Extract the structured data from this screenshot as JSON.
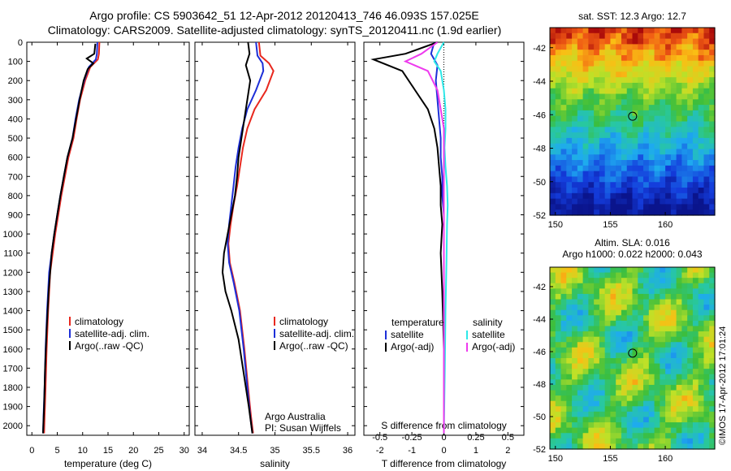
{
  "header": {
    "line1": "Argo profile: CS 5903642_51 12-Apr-2012 20120413_746 46.093S 157.025E",
    "line2": "Climatology: CARS2009. Satellite-adjusted climatology: synTS_20120411.nc (1.9d earlier)"
  },
  "colors": {
    "climatology": "#e8281e",
    "satellite": "#1d2fd8",
    "argo": "#000000",
    "sal_sat": "#2ee8e8",
    "sal_argo": "#ee3bee"
  },
  "chart_data": [
    {
      "type": "line",
      "id": "temperature",
      "xlabel": "temperature (deg C)",
      "xlim": [
        -1,
        31
      ],
      "ylim": [
        2050,
        0
      ],
      "xticks": [
        0,
        5,
        10,
        15,
        20,
        25,
        30
      ],
      "yticks": [
        0,
        100,
        200,
        300,
        400,
        500,
        600,
        700,
        800,
        900,
        1000,
        1100,
        1200,
        1300,
        1400,
        1500,
        1600,
        1700,
        1800,
        1900,
        2000
      ],
      "legend": [
        "climatology",
        "satellite-adj. clim.",
        "Argo(..raw -QC)"
      ],
      "series": [
        {
          "name": "climatology",
          "color": "#e8281e",
          "x": [
            13.3,
            13.2,
            13.0,
            11.5,
            10.5,
            9.5,
            8.8,
            8.2,
            7.2,
            6.5,
            5.8,
            5.2,
            4.6,
            4.1,
            3.6,
            3.2,
            2.9,
            2.7,
            2.5,
            2.4
          ],
          "y": [
            0,
            60,
            90,
            130,
            200,
            300,
            400,
            500,
            600,
            700,
            800,
            900,
            1000,
            1100,
            1200,
            1400,
            1600,
            1800,
            1950,
            2040
          ]
        },
        {
          "name": "satellite-adj. clim.",
          "color": "#1d2fd8",
          "x": [
            12.9,
            12.8,
            12.6,
            11.2,
            10.3,
            9.3,
            8.6,
            8.0,
            7.0,
            6.3,
            5.6,
            5.0,
            4.4,
            3.9,
            3.4,
            3.0,
            2.7,
            2.5,
            2.3,
            2.2
          ],
          "y": [
            0,
            60,
            90,
            130,
            200,
            300,
            400,
            500,
            600,
            700,
            800,
            900,
            1000,
            1100,
            1200,
            1400,
            1600,
            1800,
            1950,
            2040
          ]
        },
        {
          "name": "Argo(..raw -QC)",
          "color": "#000000",
          "x": [
            12.5,
            12.3,
            10.8,
            12.1,
            11.0,
            10.2,
            9.4,
            8.7,
            8.0,
            7.0,
            6.3,
            5.6,
            5.0,
            4.4,
            3.9,
            3.3,
            2.9,
            2.6,
            2.4,
            2.2
          ],
          "y": [
            8,
            60,
            85,
            110,
            140,
            200,
            300,
            400,
            500,
            600,
            700,
            800,
            900,
            1000,
            1100,
            1300,
            1500,
            1700,
            1900,
            2040
          ]
        }
      ]
    },
    {
      "type": "line",
      "id": "salinity",
      "xlabel": "salinity",
      "xlim": [
        33.9,
        36.1
      ],
      "ylim": [
        2050,
        0
      ],
      "xticks": [
        34,
        34.5,
        35,
        35.5,
        36
      ],
      "legend": [
        "climatology",
        "satellite-adj. clim.",
        "Argo(..raw -QC)"
      ],
      "annotation": [
        "Argo Australia",
        "PI: Susan Wijffels"
      ],
      "series": [
        {
          "name": "climatology",
          "color": "#e8281e",
          "x": [
            34.78,
            34.8,
            34.92,
            34.98,
            34.88,
            34.72,
            34.62,
            34.56,
            34.52,
            34.48,
            34.43,
            34.39,
            34.36,
            34.38,
            34.44,
            34.52,
            34.58,
            34.63,
            34.67,
            34.7
          ],
          "y": [
            0,
            70,
            110,
            150,
            250,
            350,
            450,
            550,
            650,
            750,
            850,
            950,
            1050,
            1150,
            1250,
            1400,
            1600,
            1800,
            1950,
            2040
          ]
        },
        {
          "name": "satellite-adj. clim.",
          "color": "#1d2fd8",
          "x": [
            34.74,
            34.76,
            34.83,
            34.84,
            34.74,
            34.62,
            34.55,
            34.5,
            34.46,
            34.43,
            34.4,
            34.37,
            34.35,
            34.37,
            34.43,
            34.51,
            34.57,
            34.62,
            34.66,
            34.69
          ],
          "y": [
            0,
            70,
            110,
            150,
            250,
            350,
            450,
            550,
            650,
            750,
            850,
            950,
            1050,
            1150,
            1250,
            1400,
            1600,
            1800,
            1950,
            2040
          ]
        },
        {
          "name": "Argo(..raw -QC)",
          "color": "#000000",
          "x": [
            34.63,
            34.65,
            34.6,
            34.66,
            34.62,
            34.58,
            34.54,
            34.5,
            34.48,
            34.45,
            34.4,
            34.35,
            34.3,
            34.28,
            34.32,
            34.4,
            34.5,
            34.58,
            34.64,
            34.69
          ],
          "y": [
            0,
            60,
            120,
            200,
            300,
            400,
            500,
            600,
            700,
            800,
            900,
            1000,
            1100,
            1200,
            1300,
            1400,
            1550,
            1750,
            1900,
            2040
          ]
        }
      ]
    },
    {
      "type": "line",
      "id": "differences",
      "xlabel": "T difference from climatology",
      "xlabel_top": "S difference from climatology",
      "xlim": [
        -2.5,
        2.5
      ],
      "ylim": [
        2050,
        0
      ],
      "xticks": [
        -2,
        -1,
        0,
        1,
        2
      ],
      "sticks": [
        -0.5,
        -0.25,
        0,
        0.25,
        0.5
      ],
      "legend_title_left": "temperature",
      "legend_title_right": "salinity",
      "legend": [
        "satellite",
        "Argo(-adj)",
        "satellite",
        "Argo(-adj)"
      ],
      "series": [
        {
          "name": "satellite",
          "color": "#1d2fd8",
          "x": [
            -0.3,
            -0.4,
            -0.2,
            -0.25,
            -0.2,
            -0.15,
            -0.1,
            -0.1,
            -0.05,
            -0.05,
            0,
            0,
            0,
            0,
            0,
            0
          ],
          "y": [
            0,
            60,
            120,
            200,
            300,
            400,
            500,
            600,
            700,
            800,
            900,
            1000,
            1200,
            1400,
            1700,
            2040
          ]
        },
        {
          "name": "Argo(-adj)",
          "color": "#000000",
          "x": [
            -0.2,
            -1.2,
            -2.2,
            -1.3,
            -0.9,
            -0.5,
            -0.3,
            -0.2,
            -0.15,
            -0.1,
            -0.1,
            -0.05,
            -0.1,
            -0.05,
            0,
            0
          ],
          "y": [
            0,
            60,
            90,
            150,
            250,
            350,
            450,
            550,
            650,
            750,
            850,
            950,
            1100,
            1300,
            1600,
            2040
          ]
        },
        {
          "name": "satellite",
          "color": "#2ee8e8",
          "x": [
            0,
            -0.2,
            -0.3,
            -0.1,
            0,
            0.05,
            0.05,
            0.02,
            0.05,
            0.1,
            0.12,
            0.1,
            0.08,
            0.05,
            0.03,
            0
          ],
          "y": [
            0,
            60,
            100,
            150,
            250,
            350,
            450,
            550,
            650,
            750,
            850,
            950,
            1150,
            1400,
            1700,
            2040
          ]
        },
        {
          "name": "Argo(-adj)",
          "color": "#ee3bee",
          "x": [
            -0.2,
            -0.7,
            -1.2,
            -0.5,
            -0.2,
            -0.1,
            0,
            0,
            0,
            0,
            0,
            0,
            0,
            0,
            0,
            0
          ],
          "y": [
            0,
            60,
            100,
            150,
            250,
            350,
            450,
            550,
            650,
            750,
            850,
            950,
            1150,
            1400,
            1700,
            2040
          ]
        }
      ]
    },
    {
      "type": "heatmap",
      "id": "sst-map",
      "title": "sat. SST: 12.3 Argo: 12.7",
      "xlim": [
        149.5,
        164.5
      ],
      "ylim": [
        -52,
        -40.8
      ],
      "xticks": [
        150,
        155,
        160
      ],
      "yticks": [
        -42,
        -44,
        -46,
        -48,
        -50,
        -52
      ],
      "marker": [
        157.025,
        -46.093
      ]
    },
    {
      "type": "heatmap",
      "id": "sla-map",
      "title_line1": "Altim. SLA: 0.016",
      "title_line2": "Argo h1000: 0.022 h2000: 0.043",
      "xlim": [
        149.5,
        164.5
      ],
      "ylim": [
        -52,
        -40.8
      ],
      "xticks": [
        150,
        155,
        160
      ],
      "yticks": [
        -42,
        -44,
        -46,
        -48,
        -50,
        -52
      ],
      "marker": [
        157.025,
        -46.093
      ]
    }
  ],
  "footer": {
    "credit": "©IMOS 17-Apr-2012 17:01:24"
  }
}
